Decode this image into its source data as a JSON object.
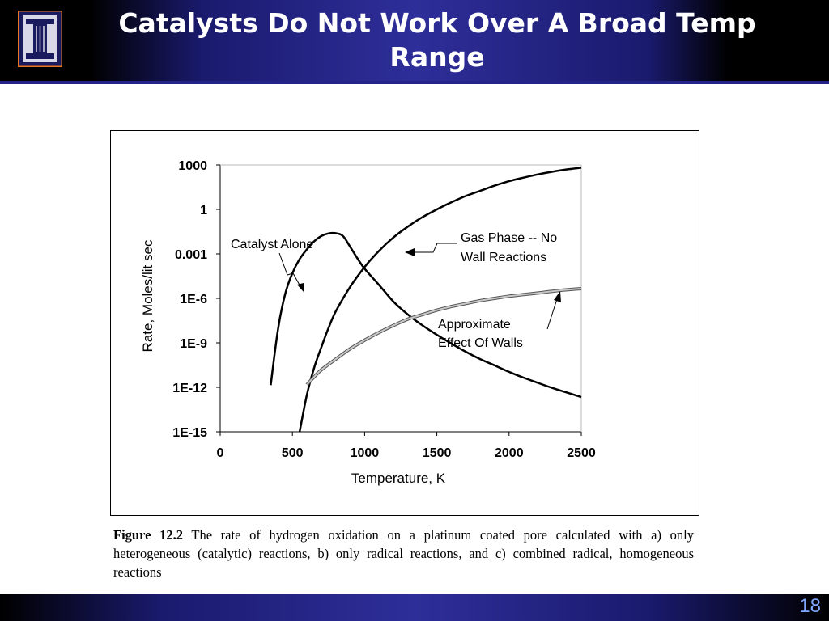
{
  "slide": {
    "title": "Catalysts Do Not Work Over A Broad Temp Range",
    "page_number": "18"
  },
  "caption": {
    "figure_label": "Figure 12.2",
    "text": "The rate of hydrogen oxidation  on a platinum coated pore calculated with a) only heterogeneous (catalytic) reactions, b) only radical reactions, and c) combined radical, homogeneous reactions"
  },
  "colors": {
    "header_blue": "#2e2e9a",
    "page_number": "#7fa8ff"
  },
  "chart_data": {
    "type": "line",
    "xlabel": "Temperature, K",
    "ylabel": "Rate, Moles/lit sec",
    "xlim": [
      0,
      2500
    ],
    "x_ticks": [
      0,
      500,
      1000,
      1500,
      2000,
      2500
    ],
    "x_tick_labels": [
      "0",
      "500",
      "1000",
      "1500",
      "2000",
      "2500"
    ],
    "y_scale": "log",
    "ylim": [
      1e-15,
      1000
    ],
    "y_ticks": [
      1e-15,
      1e-12,
      1e-09,
      1e-06,
      0.001,
      1,
      1000
    ],
    "y_tick_labels": [
      "1E-15",
      "1E-12",
      "1E-9",
      "1E-6",
      "0.001",
      "1",
      "1000"
    ],
    "grid": false,
    "legend": "none",
    "series": [
      {
        "label": "Catalyst Alone",
        "color": "#000000",
        "points": [
          [
            350,
            1.4e-12
          ],
          [
            400,
            8e-09
          ],
          [
            450,
            2e-06
          ],
          [
            500,
            5e-05
          ],
          [
            550,
            0.00045
          ],
          [
            600,
            0.002
          ],
          [
            650,
            0.007
          ],
          [
            700,
            0.016
          ],
          [
            750,
            0.024
          ],
          [
            800,
            0.025
          ],
          [
            850,
            0.016
          ],
          [
            900,
            0.003
          ],
          [
            950,
            0.0005
          ],
          [
            1000,
            0.0001
          ],
          [
            1100,
            8e-06
          ],
          [
            1200,
            6e-07
          ],
          [
            1300,
            8e-08
          ],
          [
            1400,
            1.5e-08
          ],
          [
            1500,
            3.5e-09
          ],
          [
            1600,
            9e-10
          ],
          [
            1700,
            2.5e-10
          ],
          [
            1800,
            8e-11
          ],
          [
            1900,
            3e-11
          ],
          [
            2000,
            1.1e-11
          ],
          [
            2100,
            4.5e-12
          ],
          [
            2200,
            2e-12
          ],
          [
            2300,
            9e-13
          ],
          [
            2400,
            4.5e-13
          ],
          [
            2500,
            2.2e-13
          ]
        ]
      },
      {
        "label": "Gas Phase -- No Wall Reactions",
        "color": "#000000",
        "points": [
          [
            550,
            1e-15
          ],
          [
            600,
            3e-13
          ],
          [
            650,
            2e-11
          ],
          [
            700,
            5e-10
          ],
          [
            750,
            1e-08
          ],
          [
            800,
            1.3e-07
          ],
          [
            900,
            6e-06
          ],
          [
            1000,
            0.00013
          ],
          [
            1100,
            0.0016
          ],
          [
            1200,
            0.013
          ],
          [
            1300,
            0.07
          ],
          [
            1400,
            0.3
          ],
          [
            1500,
            1
          ],
          [
            1600,
            3
          ],
          [
            1700,
            8
          ],
          [
            1800,
            18
          ],
          [
            1900,
            40
          ],
          [
            2000,
            80
          ],
          [
            2100,
            140
          ],
          [
            2200,
            230
          ],
          [
            2300,
            350
          ],
          [
            2400,
            500
          ],
          [
            2500,
            650
          ]
        ]
      },
      {
        "label": "Approximate Effect Of Walls",
        "color": "#888888",
        "points": [
          [
            600,
            1.5e-12
          ],
          [
            650,
            5e-12
          ],
          [
            700,
            1.5e-11
          ],
          [
            800,
            8e-11
          ],
          [
            900,
            4e-10
          ],
          [
            1000,
            1.5e-09
          ],
          [
            1100,
            5e-09
          ],
          [
            1200,
            1.5e-08
          ],
          [
            1300,
            4e-08
          ],
          [
            1400,
            8e-08
          ],
          [
            1500,
            1.6e-07
          ],
          [
            1600,
            2.8e-07
          ],
          [
            1700,
            4.5e-07
          ],
          [
            1800,
            7e-07
          ],
          [
            1900,
            1e-06
          ],
          [
            2000,
            1.4e-06
          ],
          [
            2100,
            1.8e-06
          ],
          [
            2200,
            2.3e-06
          ],
          [
            2300,
            3e-06
          ],
          [
            2400,
            3.8e-06
          ],
          [
            2500,
            4.5e-06
          ]
        ]
      }
    ],
    "annotations": [
      {
        "text": "Catalyst Alone",
        "series": "Catalyst Alone"
      },
      {
        "text": [
          "Gas Phase -- No",
          "Wall Reactions"
        ],
        "series": "Gas Phase -- No Wall Reactions"
      },
      {
        "text": [
          "Approximate",
          "Effect Of Walls"
        ],
        "series": "Approximate Effect Of Walls"
      }
    ]
  }
}
